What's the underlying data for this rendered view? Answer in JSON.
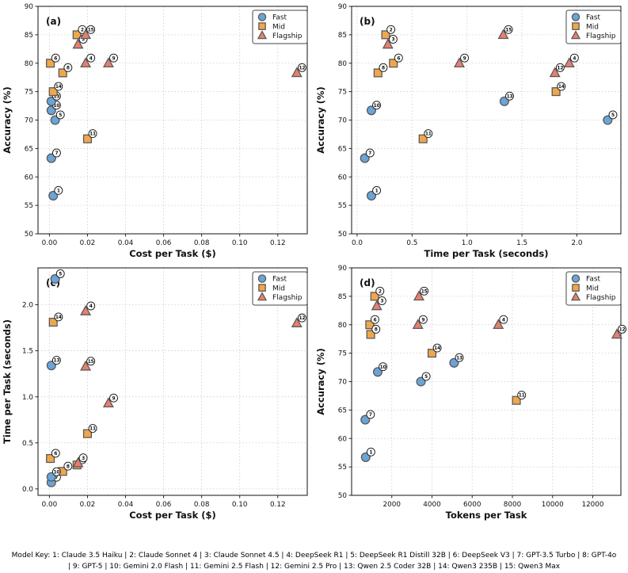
{
  "figure": {
    "caption": "Model Key: 1: Claude 3.5 Haiku | 2: Claude Sonnet 4 | 3: Claude Sonnet 4.5 | 4: DeepSeek R1 | 5: DeepSeek R1 Distill 32B | 6: DeepSeek V3 | 7: GPT-3.5 Turbo | 8: GPT-4o | 9: GPT-5 | 10: Gemini 2.0 Flash | 11: Gemini 2.5 Flash | 12: Gemini 2.5 Pro | 13: Qwen 2.5 Coder 32B | 14: Qwen3 235B | 15: Qwen3 Max"
  },
  "colors": {
    "fast": "#6BA4D6",
    "mid": "#F0A64C",
    "flagship": "#E87F6F",
    "marker_edge": "#5A5A5A",
    "grid": "#CBCBCB",
    "spine": "#262626",
    "badge_fill": "#FFFFFF",
    "badge_edge": "#111111",
    "legend_border": "#444444"
  },
  "chart_data": {
    "type": "scatter",
    "legend": {
      "position": "top-right",
      "items": [
        {
          "label": "Fast",
          "marker": "circle",
          "color_key": "fast"
        },
        {
          "label": "Mid",
          "marker": "square",
          "color_key": "mid"
        },
        {
          "label": "Flagship",
          "marker": "triangle",
          "color_key": "flagship"
        }
      ]
    },
    "models": [
      {
        "id": 1,
        "name": "Claude 3.5 Haiku",
        "tier": "Fast",
        "accuracy": 56.7,
        "cost": 0.002,
        "time": 0.13,
        "tokens": 700
      },
      {
        "id": 2,
        "name": "Claude Sonnet 4",
        "tier": "Mid",
        "accuracy": 85.0,
        "cost": 0.0145,
        "time": 0.26,
        "tokens": 1150
      },
      {
        "id": 3,
        "name": "Claude Sonnet 4.5",
        "tier": "Flagship",
        "accuracy": 83.3,
        "cost": 0.015,
        "time": 0.28,
        "tokens": 1250
      },
      {
        "id": 4,
        "name": "DeepSeek R1",
        "tier": "Flagship",
        "accuracy": 80.0,
        "cost": 0.019,
        "time": 1.93,
        "tokens": 7300
      },
      {
        "id": 5,
        "name": "DeepSeek R1 Distill 32B",
        "tier": "Fast",
        "accuracy": 70.0,
        "cost": 0.003,
        "time": 2.28,
        "tokens": 3450
      },
      {
        "id": 6,
        "name": "DeepSeek V3",
        "tier": "Mid",
        "accuracy": 80.0,
        "cost": 0.0005,
        "time": 0.33,
        "tokens": 900
      },
      {
        "id": 7,
        "name": "GPT-3.5 Turbo",
        "tier": "Fast",
        "accuracy": 63.3,
        "cost": 0.001,
        "time": 0.07,
        "tokens": 680
      },
      {
        "id": 8,
        "name": "GPT-4o",
        "tier": "Mid",
        "accuracy": 78.3,
        "cost": 0.007,
        "time": 0.19,
        "tokens": 950
      },
      {
        "id": 9,
        "name": "GPT-5",
        "tier": "Flagship",
        "accuracy": 80.0,
        "cost": 0.031,
        "time": 0.93,
        "tokens": 3300
      },
      {
        "id": 10,
        "name": "Gemini 2.0 Flash",
        "tier": "Fast",
        "accuracy": 71.7,
        "cost": 0.001,
        "time": 0.13,
        "tokens": 1300
      },
      {
        "id": 11,
        "name": "Gemini 2.5 Flash",
        "tier": "Mid",
        "accuracy": 66.7,
        "cost": 0.02,
        "time": 0.6,
        "tokens": 8200
      },
      {
        "id": 12,
        "name": "Gemini 2.5 Pro",
        "tier": "Flagship",
        "accuracy": 78.3,
        "cost": 0.13,
        "time": 1.8,
        "tokens": 13200
      },
      {
        "id": 13,
        "name": "Qwen 2.5 Coder 32B",
        "tier": "Fast",
        "accuracy": 73.3,
        "cost": 0.001,
        "time": 1.34,
        "tokens": 5100
      },
      {
        "id": 14,
        "name": "Qwen3 235B",
        "tier": "Mid",
        "accuracy": 75.0,
        "cost": 0.002,
        "time": 1.81,
        "tokens": 4000
      },
      {
        "id": 15,
        "name": "Qwen3 Max",
        "tier": "Flagship",
        "accuracy": 85.0,
        "cost": 0.019,
        "time": 1.33,
        "tokens": 3350
      }
    ],
    "panels": [
      {
        "panel_label": "(a)",
        "x_field": "cost",
        "y_field": "accuracy",
        "xlabel": "Cost per Task ($)",
        "ylabel": "Accuracy (%)",
        "xlim": [
          -0.006,
          0.1355
        ],
        "ylim": [
          50,
          90
        ],
        "grid": true,
        "xticks": {
          "values": [
            0,
            0.02,
            0.04,
            0.06,
            0.08,
            0.1,
            0.12
          ],
          "labels": [
            "0.00",
            "0.02",
            "0.04",
            "0.06",
            "0.08",
            "0.10",
            "0.12"
          ]
        },
        "yticks": {
          "values": [
            50,
            55,
            60,
            65,
            70,
            75,
            80,
            85,
            90
          ],
          "labels": [
            "50",
            "55",
            "60",
            "65",
            "70",
            "75",
            "80",
            "85",
            "90"
          ]
        }
      },
      {
        "panel_label": "(b)",
        "x_field": "time",
        "y_field": "accuracy",
        "xlabel": "Time per Task (seconds)",
        "ylabel": "Accuracy (%)",
        "xlim": [
          -0.05,
          2.4
        ],
        "ylim": [
          50,
          90
        ],
        "grid": true,
        "xticks": {
          "values": [
            0,
            0.5,
            1.0,
            1.5,
            2.0
          ],
          "labels": [
            "0.0",
            "0.5",
            "1.0",
            "1.5",
            "2.0"
          ]
        },
        "yticks": {
          "values": [
            50,
            55,
            60,
            65,
            70,
            75,
            80,
            85,
            90
          ],
          "labels": [
            "50",
            "55",
            "60",
            "65",
            "70",
            "75",
            "80",
            "85",
            "90"
          ]
        }
      },
      {
        "panel_label": "(c)",
        "x_field": "cost",
        "y_field": "time",
        "xlabel": "Cost per Task ($)",
        "ylabel": "Time per Task (seconds)",
        "xlim": [
          -0.006,
          0.1355
        ],
        "ylim": [
          -0.07,
          2.4
        ],
        "grid": true,
        "xticks": {
          "values": [
            0,
            0.02,
            0.04,
            0.06,
            0.08,
            0.1,
            0.12
          ],
          "labels": [
            "0.00",
            "0.02",
            "0.04",
            "0.06",
            "0.08",
            "0.10",
            "0.12"
          ]
        },
        "yticks": {
          "values": [
            0,
            0.5,
            1.0,
            1.5,
            2.0
          ],
          "labels": [
            "0.0",
            "0.5",
            "1.0",
            "1.5",
            "2.0"
          ]
        }
      },
      {
        "panel_label": "(d)",
        "x_field": "tokens",
        "y_field": "accuracy",
        "xlabel": "Tokens per Task",
        "ylabel": "Accuracy (%)",
        "xlim": [
          0,
          13400
        ],
        "ylim": [
          50,
          90
        ],
        "grid": true,
        "xticks": {
          "values": [
            2000,
            4000,
            6000,
            8000,
            10000,
            12000
          ],
          "labels": [
            "2000",
            "4000",
            "6000",
            "8000",
            "10000",
            "12000"
          ]
        },
        "yticks": {
          "values": [
            50,
            55,
            60,
            65,
            70,
            75,
            80,
            85,
            90
          ],
          "labels": [
            "50",
            "55",
            "60",
            "65",
            "70",
            "75",
            "80",
            "85",
            "90"
          ]
        }
      }
    ]
  }
}
